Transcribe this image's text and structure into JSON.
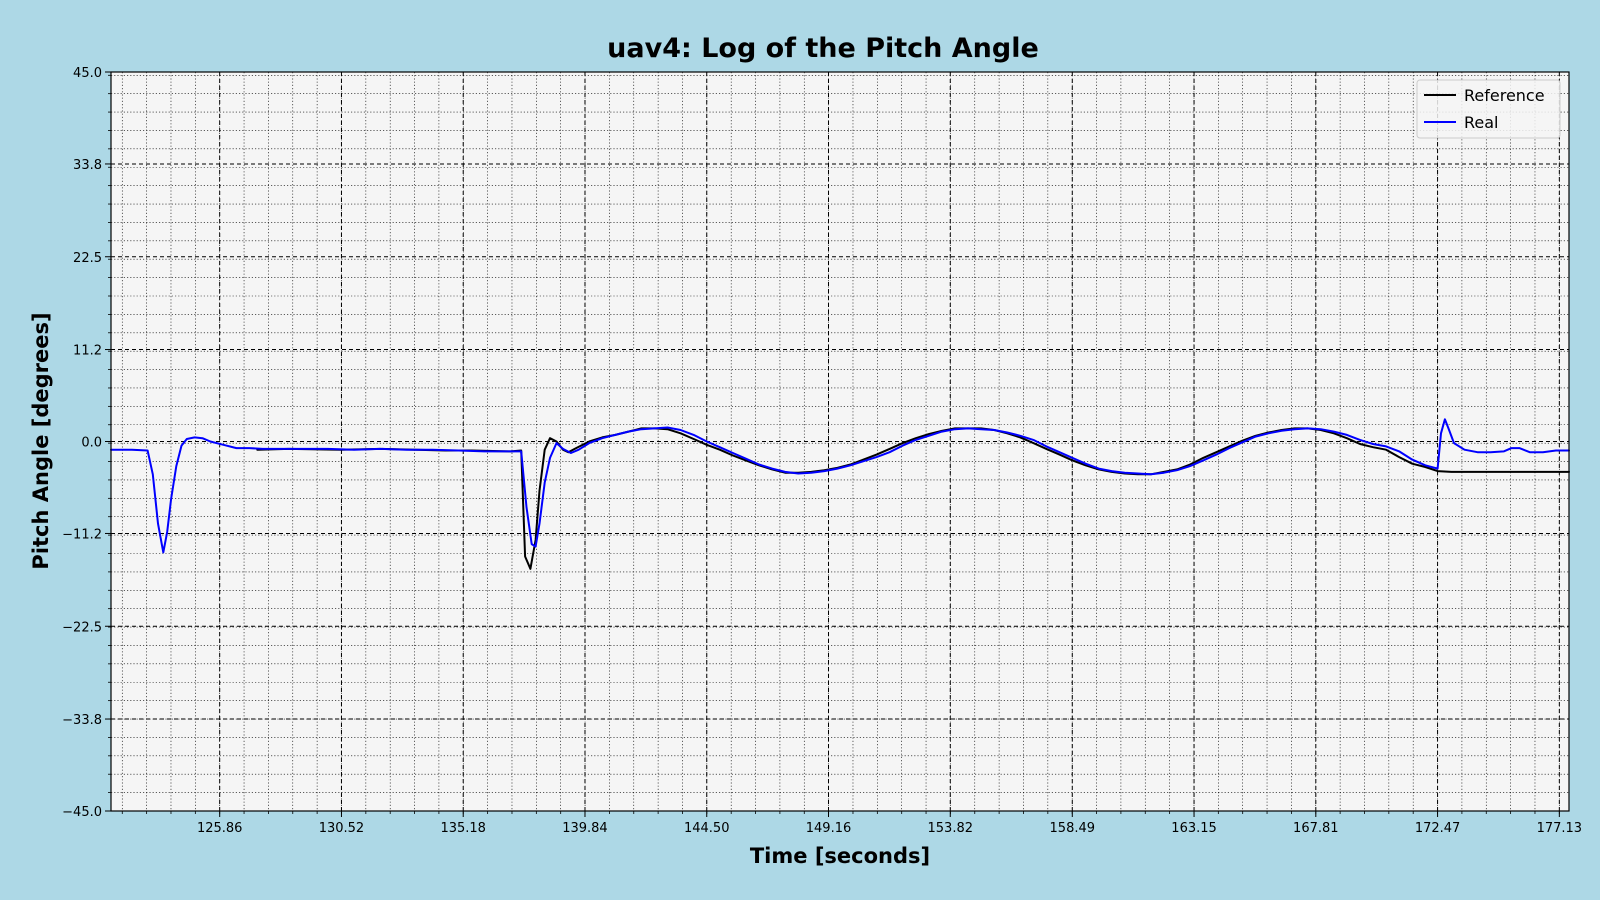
{
  "chart_data": {
    "type": "line",
    "title": "uav4: Log of the Pitch Angle",
    "xlabel": "Time [seconds]",
    "ylabel": "Pitch Angle [degrees]",
    "xlim": [
      121.7,
      177.5
    ],
    "ylim": [
      -45.0,
      45.0
    ],
    "x_ticks": [
      "125.86",
      "130.52",
      "135.18",
      "139.84",
      "144.50",
      "149.16",
      "153.82",
      "158.49",
      "163.15",
      "167.81",
      "172.47",
      "177.13"
    ],
    "x_tick_values": [
      125.86,
      130.52,
      135.18,
      139.84,
      144.5,
      149.16,
      153.82,
      158.49,
      163.15,
      167.81,
      172.47,
      177.13
    ],
    "y_ticks": [
      "45.0",
      "33.8",
      "22.5",
      "11.2",
      "0.0",
      "−11.2",
      "−22.5",
      "−33.8",
      "−45.0"
    ],
    "y_tick_values": [
      45.0,
      33.8,
      22.5,
      11.2,
      0.0,
      -11.2,
      -22.5,
      -33.8,
      -45.0
    ],
    "grid": true,
    "legend_position": "top-right",
    "colors": {
      "figure_background": "#ADD8E6",
      "plot_background": "#F5F5F5",
      "reference": "#000000",
      "real": "#0000FF"
    },
    "series": [
      {
        "name": "Reference",
        "color": "#000000",
        "points": [
          [
            127.3,
            -1.0
          ],
          [
            128.5,
            -0.9
          ],
          [
            130.5,
            -1.0
          ],
          [
            132.0,
            -0.9
          ],
          [
            134.5,
            -1.1
          ],
          [
            135.5,
            -1.1
          ],
          [
            137.0,
            -1.2
          ],
          [
            137.4,
            -1.1
          ],
          [
            137.55,
            -14.0
          ],
          [
            137.75,
            -15.5
          ],
          [
            137.95,
            -12.0
          ],
          [
            138.1,
            -6.0
          ],
          [
            138.3,
            -1.0
          ],
          [
            138.5,
            0.4
          ],
          [
            138.75,
            0.0
          ],
          [
            139.0,
            -1.0
          ],
          [
            139.2,
            -1.3
          ],
          [
            139.5,
            -0.8
          ],
          [
            140.0,
            0.0
          ],
          [
            140.5,
            0.5
          ],
          [
            141.0,
            0.8
          ],
          [
            141.5,
            1.2
          ],
          [
            142.0,
            1.6
          ],
          [
            142.5,
            1.6
          ],
          [
            143.0,
            1.5
          ],
          [
            143.5,
            1.0
          ],
          [
            144.0,
            0.3
          ],
          [
            144.5,
            -0.4
          ],
          [
            145.0,
            -1.0
          ],
          [
            145.5,
            -1.7
          ],
          [
            146.0,
            -2.3
          ],
          [
            146.5,
            -2.9
          ],
          [
            147.0,
            -3.4
          ],
          [
            147.5,
            -3.8
          ],
          [
            148.0,
            -3.8
          ],
          [
            148.5,
            -3.7
          ],
          [
            149.0,
            -3.5
          ],
          [
            149.5,
            -3.2
          ],
          [
            150.0,
            -2.8
          ],
          [
            150.5,
            -2.2
          ],
          [
            151.0,
            -1.6
          ],
          [
            151.5,
            -0.9
          ],
          [
            152.0,
            -0.2
          ],
          [
            152.5,
            0.4
          ],
          [
            153.0,
            0.9
          ],
          [
            153.5,
            1.3
          ],
          [
            154.0,
            1.6
          ],
          [
            154.5,
            1.6
          ],
          [
            155.0,
            1.6
          ],
          [
            155.5,
            1.4
          ],
          [
            156.0,
            1.0
          ],
          [
            156.5,
            0.5
          ],
          [
            157.0,
            -0.2
          ],
          [
            157.5,
            -0.9
          ],
          [
            158.0,
            -1.6
          ],
          [
            158.5,
            -2.3
          ],
          [
            159.0,
            -2.9
          ],
          [
            159.5,
            -3.4
          ],
          [
            160.0,
            -3.7
          ],
          [
            160.5,
            -3.9
          ],
          [
            161.0,
            -4.0
          ],
          [
            161.5,
            -4.0
          ],
          [
            162.0,
            -3.7
          ],
          [
            162.5,
            -3.4
          ],
          [
            163.0,
            -2.8
          ],
          [
            163.5,
            -2.0
          ],
          [
            164.0,
            -1.3
          ],
          [
            164.5,
            -0.6
          ],
          [
            165.0,
            0.1
          ],
          [
            165.5,
            0.7
          ],
          [
            166.0,
            1.1
          ],
          [
            166.5,
            1.4
          ],
          [
            167.0,
            1.6
          ],
          [
            167.5,
            1.6
          ],
          [
            168.0,
            1.4
          ],
          [
            168.5,
            1.0
          ],
          [
            169.0,
            0.4
          ],
          [
            169.5,
            -0.3
          ],
          [
            170.0,
            -0.7
          ],
          [
            170.5,
            -1.0
          ],
          [
            171.0,
            -1.9
          ],
          [
            171.5,
            -2.7
          ],
          [
            172.0,
            -3.1
          ],
          [
            172.47,
            -3.6
          ],
          [
            173.0,
            -3.7
          ],
          [
            174.0,
            -3.7
          ],
          [
            175.0,
            -3.7
          ],
          [
            176.0,
            -3.7
          ],
          [
            177.5,
            -3.7
          ]
        ]
      },
      {
        "name": "Real",
        "color": "#0000FF",
        "points": [
          [
            121.7,
            -1.0
          ],
          [
            122.5,
            -1.0
          ],
          [
            123.1,
            -1.1
          ],
          [
            123.3,
            -4.0
          ],
          [
            123.5,
            -10.0
          ],
          [
            123.7,
            -13.5
          ],
          [
            123.85,
            -11.0
          ],
          [
            124.0,
            -7.0
          ],
          [
            124.2,
            -3.0
          ],
          [
            124.4,
            -0.5
          ],
          [
            124.6,
            0.3
          ],
          [
            124.9,
            0.5
          ],
          [
            125.2,
            0.4
          ],
          [
            125.5,
            0.0
          ],
          [
            126.0,
            -0.4
          ],
          [
            126.5,
            -0.8
          ],
          [
            127.0,
            -0.8
          ],
          [
            127.5,
            -0.9
          ],
          [
            128.0,
            -0.9
          ],
          [
            129.0,
            -0.9
          ],
          [
            130.0,
            -0.9
          ],
          [
            131.0,
            -1.0
          ],
          [
            132.0,
            -0.9
          ],
          [
            133.0,
            -1.0
          ],
          [
            134.0,
            -1.0
          ],
          [
            135.0,
            -1.1
          ],
          [
            136.0,
            -1.2
          ],
          [
            137.0,
            -1.2
          ],
          [
            137.4,
            -1.2
          ],
          [
            137.6,
            -8.0
          ],
          [
            137.8,
            -12.5
          ],
          [
            137.95,
            -12.8
          ],
          [
            138.1,
            -10.0
          ],
          [
            138.3,
            -5.0
          ],
          [
            138.5,
            -2.0
          ],
          [
            138.75,
            -0.2
          ],
          [
            139.0,
            -0.9
          ],
          [
            139.3,
            -1.4
          ],
          [
            139.6,
            -1.0
          ],
          [
            140.0,
            -0.2
          ],
          [
            140.5,
            0.4
          ],
          [
            141.0,
            0.8
          ],
          [
            141.5,
            1.2
          ],
          [
            142.0,
            1.5
          ],
          [
            142.5,
            1.6
          ],
          [
            143.0,
            1.7
          ],
          [
            143.5,
            1.4
          ],
          [
            144.0,
            0.8
          ],
          [
            144.5,
            0.0
          ],
          [
            145.0,
            -0.7
          ],
          [
            145.5,
            -1.4
          ],
          [
            146.0,
            -2.1
          ],
          [
            146.5,
            -2.8
          ],
          [
            147.0,
            -3.3
          ],
          [
            147.5,
            -3.7
          ],
          [
            148.0,
            -3.9
          ],
          [
            148.5,
            -3.8
          ],
          [
            149.0,
            -3.6
          ],
          [
            149.5,
            -3.3
          ],
          [
            150.0,
            -2.9
          ],
          [
            150.5,
            -2.4
          ],
          [
            151.0,
            -1.9
          ],
          [
            151.5,
            -1.3
          ],
          [
            152.0,
            -0.5
          ],
          [
            152.5,
            0.2
          ],
          [
            153.0,
            0.7
          ],
          [
            153.5,
            1.2
          ],
          [
            154.0,
            1.5
          ],
          [
            154.5,
            1.6
          ],
          [
            155.0,
            1.5
          ],
          [
            155.5,
            1.4
          ],
          [
            156.0,
            1.1
          ],
          [
            156.5,
            0.7
          ],
          [
            157.0,
            0.2
          ],
          [
            157.5,
            -0.6
          ],
          [
            158.0,
            -1.3
          ],
          [
            158.5,
            -2.0
          ],
          [
            159.0,
            -2.7
          ],
          [
            159.5,
            -3.3
          ],
          [
            160.0,
            -3.6
          ],
          [
            160.5,
            -3.8
          ],
          [
            161.0,
            -3.9
          ],
          [
            161.5,
            -4.0
          ],
          [
            162.0,
            -3.8
          ],
          [
            162.5,
            -3.5
          ],
          [
            163.0,
            -3.0
          ],
          [
            163.5,
            -2.3
          ],
          [
            164.0,
            -1.6
          ],
          [
            164.5,
            -0.8
          ],
          [
            165.0,
            -0.1
          ],
          [
            165.5,
            0.6
          ],
          [
            166.0,
            1.0
          ],
          [
            166.5,
            1.3
          ],
          [
            167.0,
            1.5
          ],
          [
            167.5,
            1.6
          ],
          [
            168.0,
            1.5
          ],
          [
            168.5,
            1.2
          ],
          [
            169.0,
            0.8
          ],
          [
            169.5,
            0.2
          ],
          [
            170.0,
            -0.3
          ],
          [
            170.5,
            -0.6
          ],
          [
            171.0,
            -1.2
          ],
          [
            171.5,
            -2.2
          ],
          [
            172.0,
            -2.9
          ],
          [
            172.47,
            -3.3
          ],
          [
            172.6,
            1.0
          ],
          [
            172.75,
            2.7
          ],
          [
            172.9,
            1.5
          ],
          [
            173.1,
            -0.2
          ],
          [
            173.5,
            -1.0
          ],
          [
            174.0,
            -1.3
          ],
          [
            174.5,
            -1.3
          ],
          [
            175.0,
            -1.2
          ],
          [
            175.3,
            -0.8
          ],
          [
            175.6,
            -0.8
          ],
          [
            176.0,
            -1.3
          ],
          [
            176.5,
            -1.3
          ],
          [
            177.0,
            -1.1
          ],
          [
            177.5,
            -1.1
          ]
        ]
      }
    ]
  }
}
